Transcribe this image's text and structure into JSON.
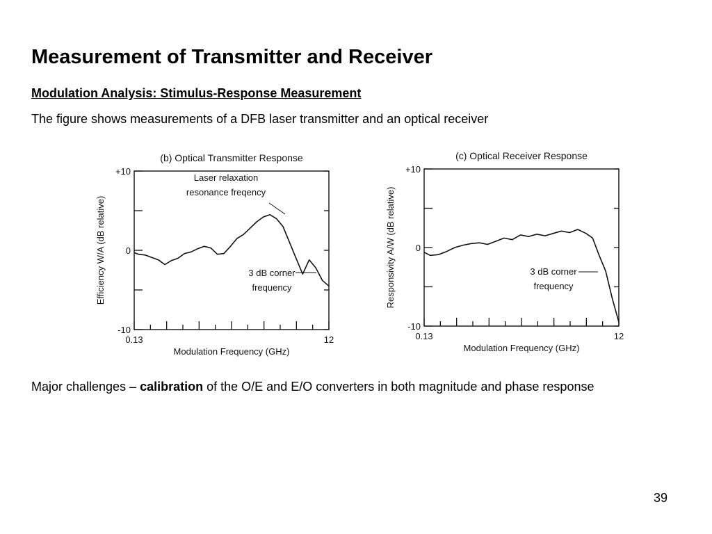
{
  "slide": {
    "title": "Measurement of Transmitter and Receiver",
    "subtitle": "Modulation Analysis: Stimulus-Response Measurement",
    "intro": "The figure shows measurements of a DFB laser transmitter and an optical receiver",
    "note_prefix": "Major challenges – ",
    "note_bold": "calibration",
    "note_suffix": " of the O/E and E/O converters in both magnitude and phase response",
    "page_number": "39"
  },
  "chart_data": [
    {
      "type": "line",
      "title": "(b) Optical Transmitter Response",
      "xlabel": "Modulation Frequency (GHz)",
      "ylabel": "Efficiency W/A (dB relative)",
      "xlim": [
        0.13,
        12
      ],
      "ylim": [
        -10,
        10
      ],
      "x_tick_labels": [
        "0.13",
        "12"
      ],
      "y_tick_labels": [
        "+10",
        "0",
        "-10"
      ],
      "grid": false,
      "annotations": [
        "Laser relaxation",
        "resonance freqency",
        "3 dB corner",
        "frequency"
      ],
      "series": [
        {
          "x": [
            0.13,
            0.4,
            0.8,
            1.2,
            1.6,
            2.0,
            2.4,
            2.8,
            3.2,
            3.6,
            4.0,
            4.4,
            4.8,
            5.2,
            5.6,
            6.0,
            6.4,
            6.8,
            7.2,
            7.6,
            8.0,
            8.4,
            8.8,
            9.2,
            9.6,
            10.0,
            10.4,
            10.8,
            11.2,
            11.6,
            12.0
          ],
          "y": [
            -0.3,
            -0.5,
            -0.6,
            -0.9,
            -1.2,
            -1.8,
            -1.3,
            -1.0,
            -0.4,
            -0.2,
            0.2,
            0.5,
            0.3,
            -0.5,
            -0.4,
            0.5,
            1.5,
            2.0,
            2.8,
            3.6,
            4.2,
            4.5,
            4.0,
            3.0,
            1.0,
            -1.0,
            -3.0,
            -1.2,
            -2.2,
            -3.8,
            -4.5
          ]
        }
      ]
    },
    {
      "type": "line",
      "title": "(c) Optical Receiver Response",
      "xlabel": "Modulation Frequency (GHz)",
      "ylabel": "Responsivity A/W (dB relative)",
      "xlim": [
        0.13,
        12
      ],
      "ylim": [
        -10,
        10
      ],
      "x_tick_labels": [
        "0.13",
        "12"
      ],
      "y_tick_labels": [
        "+10",
        "0",
        "-10"
      ],
      "grid": false,
      "annotations": [
        "3 dB corner",
        "frequency"
      ],
      "series": [
        {
          "x": [
            0.13,
            0.5,
            1.0,
            1.5,
            2.0,
            2.5,
            3.0,
            3.5,
            4.0,
            4.5,
            5.0,
            5.5,
            6.0,
            6.5,
            7.0,
            7.5,
            8.0,
            8.5,
            9.0,
            9.5,
            10.0,
            10.4,
            10.8,
            11.2,
            11.6,
            12.0
          ],
          "y": [
            -0.6,
            -1.0,
            -0.9,
            -0.5,
            0.0,
            0.3,
            0.5,
            0.6,
            0.4,
            0.8,
            1.2,
            1.0,
            1.6,
            1.4,
            1.7,
            1.5,
            1.8,
            2.1,
            1.9,
            2.3,
            1.8,
            1.2,
            -1.0,
            -3.0,
            -6.5,
            -9.5
          ]
        }
      ]
    }
  ]
}
